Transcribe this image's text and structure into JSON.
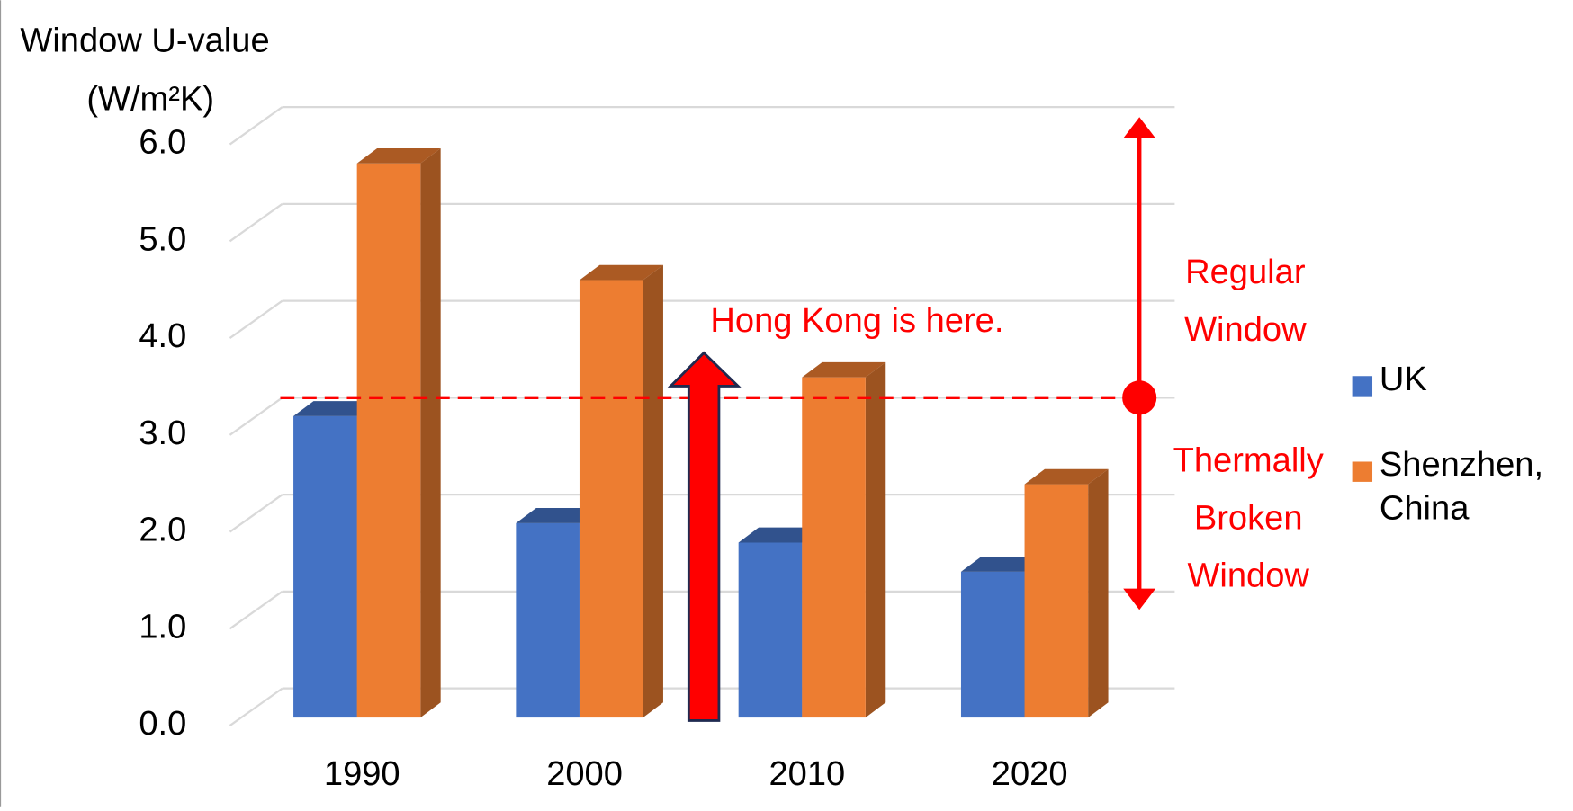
{
  "chart_data": {
    "type": "bar3d",
    "y_label_line1": "Window U-value",
    "y_label_line2": "(W/m²K)",
    "categories": [
      "1990",
      "2000",
      "2010",
      "2020"
    ],
    "series": [
      {
        "name": "UK",
        "color": "#4472c4",
        "values": [
          3.1,
          2.0,
          1.8,
          1.5
        ]
      },
      {
        "name": "Shenzhen, China",
        "color": "#ed7d31",
        "values": [
          5.7,
          4.5,
          3.5,
          2.4
        ]
      }
    ],
    "ylim": [
      0,
      6
    ],
    "yticks": [
      {
        "value": 0,
        "label": "0.0"
      },
      {
        "value": 1,
        "label": "1.0"
      },
      {
        "value": 2,
        "label": "2.0"
      },
      {
        "value": 3,
        "label": "3.0"
      },
      {
        "value": 4,
        "label": "4.0"
      },
      {
        "value": 5,
        "label": "5.0"
      },
      {
        "value": 6,
        "label": "6.0"
      }
    ],
    "grid": true,
    "reference_line": 3.0,
    "annotations": {
      "hong_kong": "Hong Kong is here.",
      "upper": "Regular Window",
      "lower": "Thermally Broken Window"
    }
  }
}
